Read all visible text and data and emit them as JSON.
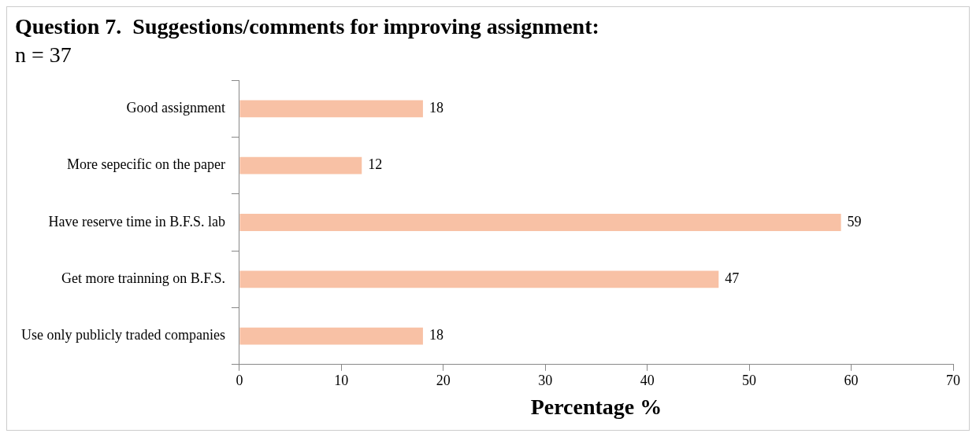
{
  "chart_data": {
    "type": "bar",
    "orientation": "horizontal",
    "title": "Question 7.  Suggestions/comments for improving assignment:",
    "subtitle": "n = 37",
    "xlabel": "Percentage %",
    "categories": [
      "Good assignment",
      "More sepecific on the paper",
      "Have reserve time in B.F.S. lab",
      "Get more trainning on B.F.S.",
      "Use only publicly traded companies"
    ],
    "values": [
      18,
      12,
      59,
      47,
      18
    ],
    "color": "#f8c1a5",
    "xlim": [
      0,
      70
    ],
    "xticks": [
      0,
      10,
      20,
      30,
      40,
      50,
      60,
      70
    ],
    "grid": false,
    "legend": false,
    "data_labels": true
  }
}
